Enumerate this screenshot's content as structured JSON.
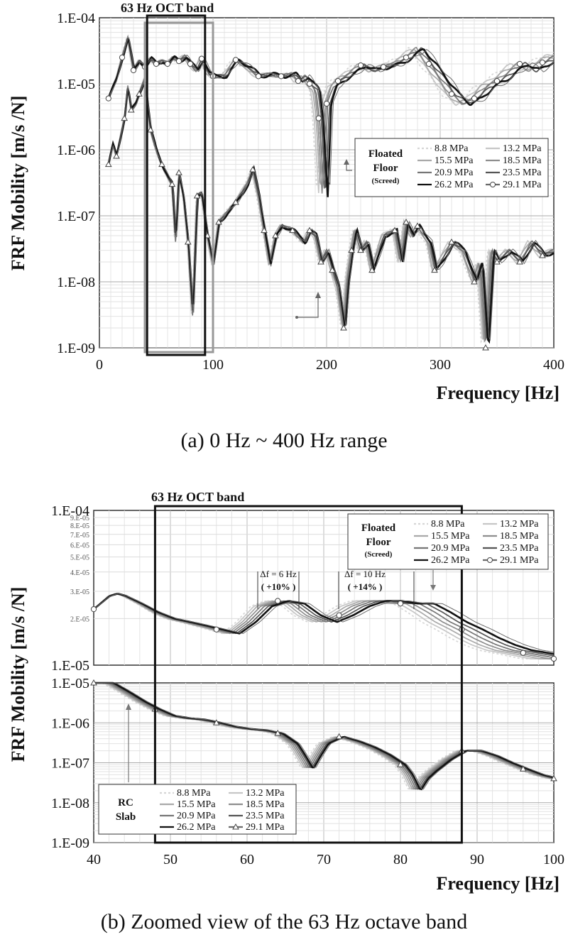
{
  "colors": {
    "8.8 MPa": "#d6d6d6",
    "13.2 MPa": "#c6c6c6",
    "15.5 MPa": "#a9a9a9",
    "18.5 MPa": "#8e8e8e",
    "20.9 MPa": "#767676",
    "23.5 MPa": "#555555",
    "26.2 MPa": "#111111",
    "29.1 MPa": "#6a6a6a"
  },
  "chart_data": [
    {
      "type": "line",
      "y_scale": "log",
      "xlim": [
        0,
        400
      ],
      "ylim": [
        1e-09,
        0.0001
      ],
      "x_ticks": [
        "0",
        "100",
        "200",
        "300",
        "400"
      ],
      "y_ticks": [
        "1.E-09",
        "1.E-08",
        "1.E-07",
        "1.E-06",
        "1.E-05",
        "1.E-04"
      ],
      "xlabel": "Frequency [Hz]",
      "ylabel": "FRF Mobility [m/s /N]",
      "caption": "(a)  0 Hz ~ 400 Hz  range",
      "band_label": "63 Hz OCT band",
      "band_range": [
        45,
        95
      ],
      "legend_title": [
        "Floated",
        "Floor"
      ],
      "legend_subtitle": "(Screed)",
      "legend_entries": [
        "8.8 MPa",
        "13.2 MPa",
        "15.5 MPa",
        "18.5 MPa",
        "20.9 MPa",
        "23.5 MPa",
        "26.2 MPa",
        "29.1 MPa"
      ],
      "series_groups": [
        {
          "group": "Floated Floor (Screed)",
          "base": {
            "x": [
              8,
              15,
              20,
              25,
              30,
              35,
              40,
              45,
              50,
              55,
              60,
              65,
              70,
              75,
              80,
              85,
              90,
              95,
              100,
              110,
              120,
              130,
              140,
              150,
              160,
              170,
              175,
              180,
              185,
              190,
              193,
              197,
              200,
              205,
              210,
              220,
              230,
              240,
              250,
              260,
              270,
              280,
              290,
              300,
              310,
              320,
              330,
              340,
              350,
              360,
              370,
              380,
              390,
              400
            ],
            "y": [
              6e-06,
              1.2e-05,
              2.5e-05,
              5e-05,
              1.6e-05,
              2.2e-05,
              1.8e-05,
              2.4e-05,
              2e-05,
              2.2e-05,
              2e-05,
              2.5e-05,
              2.2e-05,
              2.6e-05,
              2e-05,
              1.6e-05,
              2.4e-05,
              1.5e-05,
              1.3e-05,
              1.3e-05,
              2.3e-05,
              1.8e-05,
              1.3e-05,
              1.4e-05,
              1.3e-05,
              1.4e-05,
              1.1e-05,
              1.3e-05,
              1e-05,
              8e-06,
              3e-06,
              2e-07,
              5e-06,
              9e-06,
              1.1e-05,
              1.4e-05,
              1.9e-05,
              1.6e-05,
              1.8e-05,
              2e-05,
              2.5e-05,
              3.4e-05,
              2e-05,
              1.2e-05,
              7e-06,
              5e-06,
              6e-06,
              9e-06,
              1.1e-05,
              1.5e-05,
              2e-05,
              1.6e-05,
              2.1e-05,
              2.6e-05
            ]
          }
        },
        {
          "group": "RC Slab",
          "base": {
            "x": [
              8,
              12,
              15,
              18,
              22,
              25,
              28,
              32,
              35,
              40,
              45,
              50,
              55,
              60,
              64,
              67,
              70,
              74,
              78,
              82,
              86,
              90,
              95,
              100,
              105,
              110,
              120,
              130,
              135,
              140,
              145,
              150,
              155,
              160,
              170,
              180,
              185,
              190,
              195,
              200,
              205,
              210,
              215,
              218,
              222,
              225,
              230,
              235,
              240,
              250,
              260,
              265,
              270,
              275,
              280,
              290,
              295,
              300,
              310,
              320,
              330,
              335,
              340,
              345,
              350,
              360,
              370,
              380,
              390,
              400
            ],
            "y": [
              6e-07,
              1.2e-06,
              8e-07,
              1.4e-06,
              3e-06,
              9e-06,
              4e-06,
              5e-06,
              7e-06,
              1.2e-05,
              2e-06,
              1e-06,
              6e-07,
              4e-07,
              3e-07,
              4e-08,
              4.5e-07,
              2e-07,
              4e-08,
              3e-09,
              2e-07,
              2.2e-07,
              5e-08,
              1.8e-08,
              8e-08,
              1e-07,
              1.6e-07,
              3e-07,
              5e-07,
              2e-07,
              6e-08,
              1.8e-08,
              5e-08,
              7e-08,
              6e-08,
              4e-08,
              6e-08,
              5e-08,
              2e-08,
              3e-08,
              1.5e-08,
              8e-09,
              2e-09,
              1e-08,
              3e-08,
              6e-08,
              3e-08,
              4e-08,
              1.5e-08,
              5e-08,
              6e-08,
              2e-08,
              8e-08,
              5e-08,
              7e-08,
              4e-08,
              1.5e-08,
              2e-08,
              4e-08,
              3e-08,
              1e-08,
              2e-08,
              1e-09,
              3e-08,
              2e-08,
              3e-08,
              2e-08,
              4e-08,
              2.5e-08,
              3e-08
            ]
          }
        }
      ]
    },
    {
      "type": "line",
      "y_scale": "log",
      "xlim": [
        40,
        100
      ],
      "x_ticks": [
        "40",
        "50",
        "60",
        "70",
        "80",
        "90",
        "100"
      ],
      "xlabel": "Frequency [Hz]",
      "ylabel": "FRF Mobility [m/s /N]",
      "caption": "(b)  Zoomed  view  of  the  63 Hz  octave  band",
      "band_label": "63 Hz OCT band",
      "band_range": [
        48,
        88
      ],
      "top_panel": {
        "ylim": [
          1e-05,
          0.0001
        ],
        "y_ticks_major": [
          "1.E-05",
          "1.E-04"
        ],
        "y_ticks_minor": [
          "2.E-05",
          "3.E-05",
          "4.E-05",
          "5.E-05",
          "6.E-05",
          "7.E-05",
          "8.E-05",
          "9.E-05"
        ],
        "legend_title": [
          "Floated",
          "Floor"
        ],
        "legend_subtitle": "(Screed)",
        "legend_entries": [
          "8.8 MPa",
          "13.2 MPa",
          "15.5 MPa",
          "18.5 MPa",
          "20.9 MPa",
          "23.5 MPa",
          "26.2 MPa",
          "29.1 MPa"
        ],
        "annotations": [
          {
            "text": "Δf = 6 Hz",
            "sub": "( +10% )"
          },
          {
            "text": "Δf = 10 Hz",
            "sub": "( +14% )"
          }
        ],
        "base": {
          "x": [
            40,
            42,
            43,
            44,
            46,
            48,
            50,
            52,
            54,
            56,
            58,
            60,
            62,
            64,
            66,
            68,
            70,
            72,
            74,
            76,
            78,
            80,
            82,
            84,
            86,
            88,
            90,
            92,
            94,
            96,
            98,
            100
          ],
          "y": [
            2.3e-05,
            2.8e-05,
            2.9e-05,
            2.8e-05,
            2.5e-05,
            2.2e-05,
            2e-05,
            1.9e-05,
            1.8e-05,
            1.7e-05,
            1.6e-05,
            1.9e-05,
            2.4e-05,
            2.6e-05,
            2.5e-05,
            2.1e-05,
            1.9e-05,
            2.1e-05,
            2.4e-05,
            2.6e-05,
            2.6e-05,
            2.5e-05,
            2.5e-05,
            2.2e-05,
            1.9e-05,
            1.7e-05,
            1.5e-05,
            1.35e-05,
            1.25e-05,
            1.2e-05,
            1.15e-05,
            1.1e-05
          ]
        }
      },
      "bottom_panel": {
        "ylim": [
          1e-09,
          1e-05
        ],
        "y_ticks": [
          "1.E-09",
          "1.E-08",
          "1.E-07",
          "1.E-06",
          "1.E-05"
        ],
        "legend_title": [
          "RC",
          "Slab"
        ],
        "legend_entries": [
          "8.8 MPa",
          "13.2 MPa",
          "15.5 MPa",
          "18.5 MPa",
          "20.9 MPa",
          "23.5 MPa",
          "26.2 MPa",
          "29.1 MPa"
        ],
        "base": {
          "x": [
            40,
            42,
            44,
            46,
            48,
            50,
            52,
            54,
            56,
            58,
            60,
            62,
            64,
            66,
            67,
            68,
            69,
            70,
            72,
            74,
            76,
            78,
            80,
            81,
            82,
            83,
            84,
            86,
            88,
            90,
            92,
            94,
            96,
            98,
            100
          ],
          "y": [
            1e-05,
            1e-05,
            6e-06,
            3.5e-06,
            2.2e-06,
            1.5e-06,
            1.3e-06,
            1.2e-06,
            1e-06,
            8e-07,
            7e-07,
            6.5e-07,
            5.5e-07,
            3e-07,
            1.5e-07,
            7e-08,
            1.5e-07,
            3e-07,
            4.5e-07,
            3.5e-07,
            2.5e-07,
            1.6e-07,
            9e-08,
            5e-08,
            2e-08,
            4e-08,
            6e-08,
            1.2e-07,
            2e-07,
            2e-07,
            1.5e-07,
            1e-07,
            7e-08,
            5e-08,
            4e-08
          ]
        }
      }
    }
  ]
}
